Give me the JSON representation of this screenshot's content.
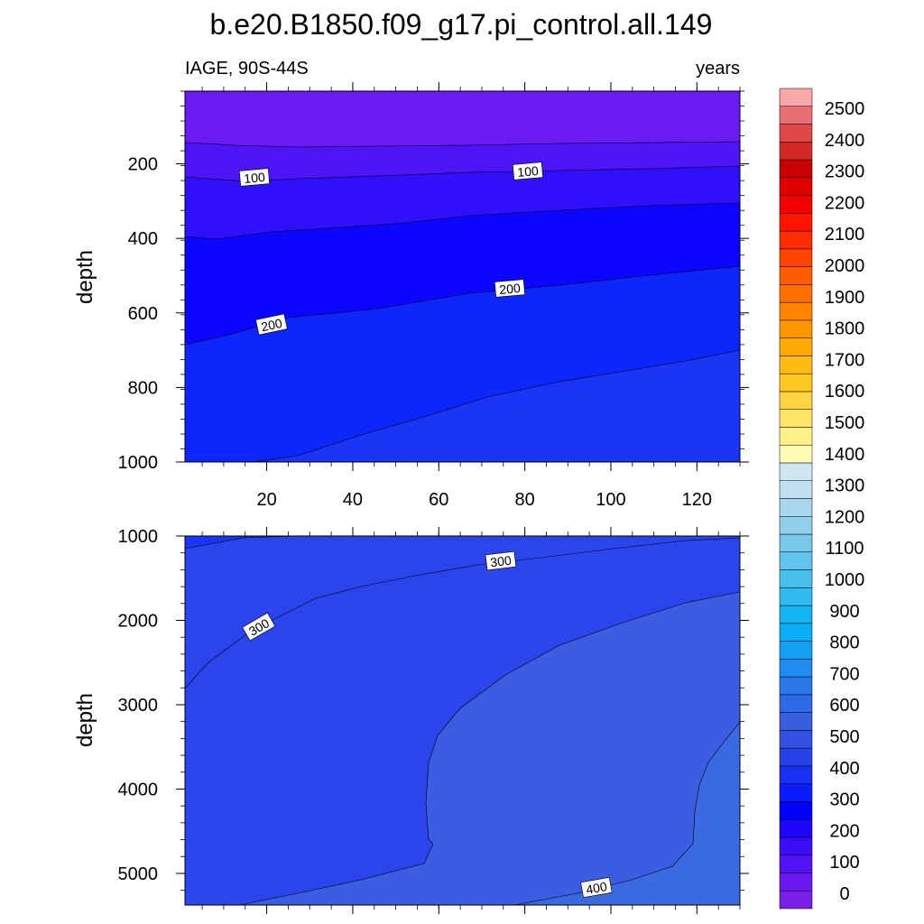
{
  "chart_data": [
    {
      "type": "contour",
      "title": "b.e20.B1850.f09_g17.pi_control.all.149",
      "left_subtitle": "IAGE, 90S-44S",
      "right_subtitle": "years",
      "ylabel": "depth",
      "xlabel": "",
      "xlim": [
        1,
        130
      ],
      "ylim": [
        1000,
        5
      ],
      "x_ticks": [
        20,
        40,
        60,
        80,
        100,
        120
      ],
      "y_ticks": [
        200,
        400,
        600,
        800,
        1000
      ],
      "contour_levels": [
        50,
        100,
        150,
        200,
        250,
        300,
        350
      ],
      "contour_labels": [
        "100",
        "100",
        "200",
        "200"
      ],
      "fill_colors": [
        "#6a1af2",
        "#4d14f6",
        "#3010fa",
        "#0a06ff",
        "#0c26fc",
        "#1a35f5"
      ]
    },
    {
      "type": "contour",
      "ylabel": "depth",
      "xlim": [
        1,
        130
      ],
      "ylim": [
        5375,
        1000
      ],
      "x_ticks": [
        20,
        40,
        60,
        80,
        100,
        120
      ],
      "y_ticks": [
        1000,
        2000,
        3000,
        4000,
        5000
      ],
      "contour_levels": [
        250,
        300,
        350,
        400
      ],
      "contour_labels": [
        "300",
        "300",
        "400"
      ],
      "fill_colors": [
        "#1a35f5",
        "#2a45ec",
        "#3a5de1",
        "#3a6ae0"
      ]
    }
  ],
  "colorbar": {
    "labels": [
      "0",
      "100",
      "200",
      "300",
      "400",
      "500",
      "600",
      "700",
      "800",
      "900",
      "1000",
      "1100",
      "1200",
      "1300",
      "1400",
      "1500",
      "1600",
      "1700",
      "1800",
      "1900",
      "2000",
      "2100",
      "2200",
      "2300",
      "2400",
      "2500"
    ],
    "colors": [
      "#7a1fe8",
      "#6a18f0",
      "#5212f4",
      "#3a0cf8",
      "#1e06fc",
      "#0000ff",
      "#0a1cfb",
      "#1830f2",
      "#2842ea",
      "#3350e2",
      "#3a5ee0",
      "#2e6ae8",
      "#2a78ec",
      "#208cf0",
      "#14a0f4",
      "#0aaef6",
      "#12b4f2",
      "#30bcf0",
      "#48c0ee",
      "#60c4ec",
      "#78c8ea",
      "#90d0ea",
      "#a8d8ee",
      "#bee0f0",
      "#cde6f2",
      "#fffcb8",
      "#fff08a",
      "#ffe466",
      "#ffd440",
      "#ffc820",
      "#ffbc10",
      "#ffaa00",
      "#ff9600",
      "#ff8400",
      "#ff7000",
      "#ff5c00",
      "#ff4400",
      "#ff2c00",
      "#ff1400",
      "#f50000",
      "#e00000",
      "#c80000",
      "#d42828",
      "#e04848",
      "#e87070",
      "#f8a8a8"
    ]
  }
}
